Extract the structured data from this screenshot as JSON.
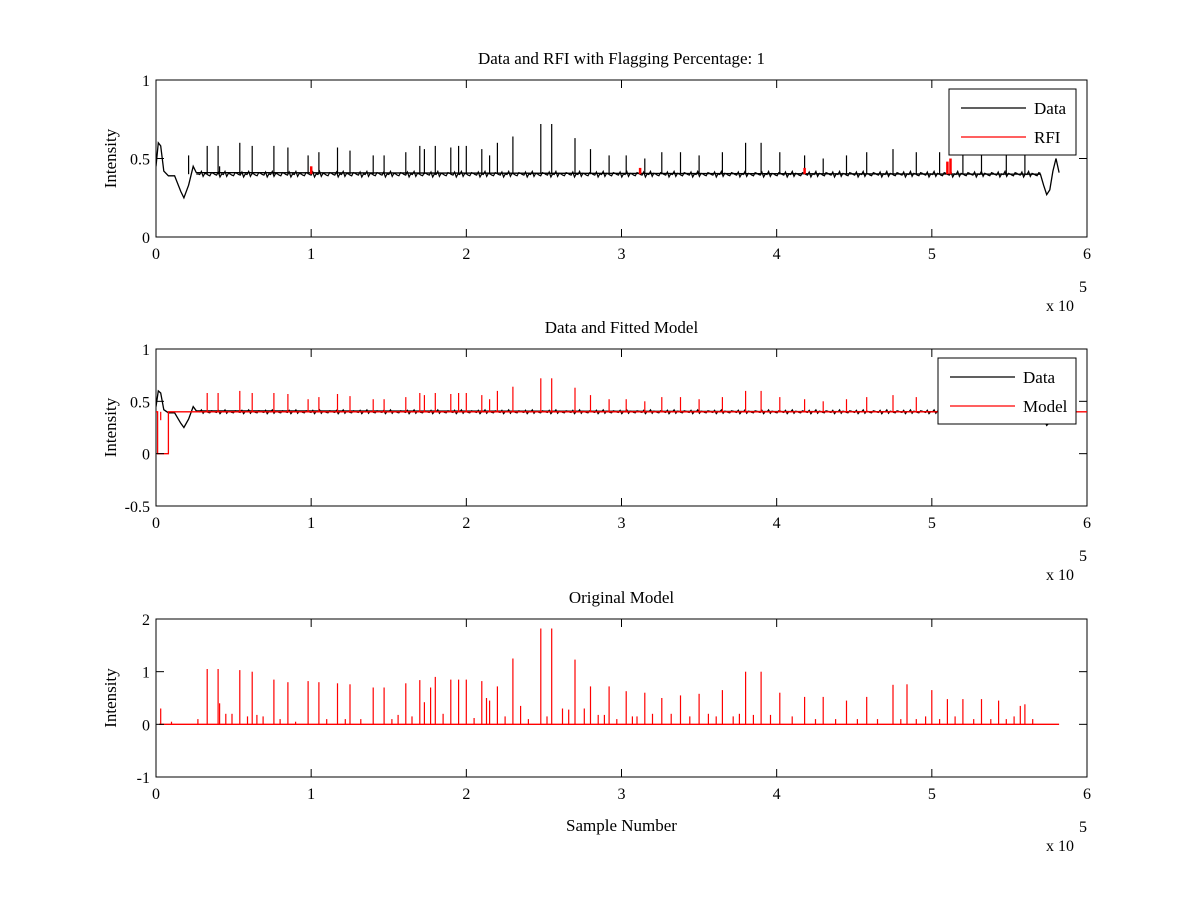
{
  "chart_data": [
    {
      "type": "line",
      "title": "Data and RFI with Flagging Percentage: 1",
      "xlabel": "",
      "ylabel": "Intensity",
      "xlim": [
        0,
        600000
      ],
      "ylim": [
        0,
        1
      ],
      "x_ticks": [
        0,
        1,
        2,
        3,
        4,
        5,
        6
      ],
      "y_ticks": [
        "0",
        "0.5",
        "1"
      ],
      "x_exponent_label": "x 10",
      "x_exponent": "5",
      "legend_position": "top-right",
      "series": [
        {
          "name": "Data",
          "color": "#000000",
          "baseline": 0.4,
          "x": [
            0,
            1500,
            3000,
            5000,
            8000,
            12000,
            16000,
            18000,
            21000,
            24000,
            26000,
            570000,
            572000,
            574000,
            576000,
            578000,
            580000,
            582000
          ],
          "y": [
            0.45,
            0.6,
            0.58,
            0.42,
            0.39,
            0.39,
            0.29,
            0.25,
            0.33,
            0.45,
            0.41,
            0.4,
            0.33,
            0.27,
            0.3,
            0.42,
            0.5,
            0.41
          ],
          "spikes_x": [
            21000,
            33000,
            40000,
            41000,
            54000,
            62000,
            76000,
            85000,
            98000,
            105000,
            117000,
            125000,
            140000,
            147000,
            161000,
            170000,
            173000,
            180000,
            190000,
            195000,
            200000,
            210000,
            215000,
            220000,
            230000,
            248000,
            255000,
            270000,
            280000,
            292000,
            303000,
            315000,
            326000,
            338000,
            350000,
            365000,
            380000,
            390000,
            402000,
            418000,
            430000,
            445000,
            458000,
            475000,
            490000,
            505000,
            520000,
            532000,
            548000,
            560000
          ],
          "spikes_y": [
            0.52,
            0.58,
            0.58,
            0.45,
            0.6,
            0.58,
            0.58,
            0.57,
            0.52,
            0.54,
            0.57,
            0.55,
            0.52,
            0.52,
            0.54,
            0.58,
            0.56,
            0.58,
            0.57,
            0.58,
            0.58,
            0.56,
            0.52,
            0.6,
            0.64,
            0.72,
            0.72,
            0.63,
            0.56,
            0.52,
            0.52,
            0.5,
            0.54,
            0.54,
            0.52,
            0.54,
            0.6,
            0.6,
            0.54,
            0.52,
            0.5,
            0.52,
            0.54,
            0.56,
            0.54,
            0.54,
            0.56,
            0.52,
            0.52,
            0.52
          ]
        },
        {
          "name": "RFI",
          "color": "#ff0000",
          "baseline": 0.4,
          "spikes_x": [
            100000,
            312000,
            418000,
            510000,
            512000
          ],
          "spikes_y": [
            0.45,
            0.44,
            0.44,
            0.48,
            0.5
          ]
        }
      ]
    },
    {
      "type": "line",
      "title": "Data and Fitted Model",
      "xlabel": "",
      "ylabel": "Intensity",
      "xlim": [
        0,
        600000
      ],
      "ylim": [
        -0.5,
        1
      ],
      "x_ticks": [
        0,
        1,
        2,
        3,
        4,
        5,
        6
      ],
      "y_ticks": [
        "-0.5",
        "0",
        "0.5",
        "1"
      ],
      "x_exponent_label": "x 10",
      "x_exponent": "5",
      "legend_position": "top-right",
      "series": [
        {
          "name": "Data",
          "color": "#000000",
          "baseline": 0.4,
          "x": [
            0,
            1500,
            3000,
            5000,
            8000,
            12000,
            16000,
            18000,
            21000,
            24000,
            26000,
            570000,
            572000,
            574000,
            576000,
            578000
          ],
          "y": [
            0.45,
            0.6,
            0.58,
            0.42,
            0.39,
            0.39,
            0.29,
            0.25,
            0.33,
            0.45,
            0.41,
            0.4,
            0.33,
            0.27,
            0.3,
            0.4
          ]
        },
        {
          "name": "Model",
          "color": "#ff0000",
          "baseline": 0.4,
          "x": [
            0,
            1000,
            1000,
            8000,
            8000,
            600000
          ],
          "y": [
            0.4,
            0.4,
            0,
            0,
            0.4,
            0.4
          ],
          "spikes_x": [
            3000,
            33000,
            40000,
            54000,
            62000,
            76000,
            85000,
            98000,
            105000,
            117000,
            125000,
            140000,
            147000,
            161000,
            170000,
            173000,
            180000,
            190000,
            195000,
            200000,
            210000,
            215000,
            220000,
            230000,
            248000,
            255000,
            270000,
            280000,
            292000,
            303000,
            315000,
            326000,
            338000,
            350000,
            365000,
            380000,
            390000,
            402000,
            418000,
            430000,
            445000,
            458000,
            475000,
            490000,
            505000,
            520000,
            532000,
            548000,
            560000
          ],
          "spikes_y": [
            0.32,
            0.58,
            0.58,
            0.6,
            0.58,
            0.58,
            0.57,
            0.52,
            0.54,
            0.57,
            0.55,
            0.52,
            0.52,
            0.54,
            0.58,
            0.56,
            0.58,
            0.57,
            0.58,
            0.58,
            0.56,
            0.52,
            0.6,
            0.64,
            0.72,
            0.72,
            0.63,
            0.56,
            0.52,
            0.52,
            0.5,
            0.54,
            0.54,
            0.52,
            0.54,
            0.6,
            0.6,
            0.54,
            0.52,
            0.5,
            0.52,
            0.54,
            0.56,
            0.54,
            0.54,
            0.56,
            0.52,
            0.52,
            0.52
          ]
        }
      ]
    },
    {
      "type": "line",
      "title": "Original Model",
      "xlabel": "Sample Number",
      "ylabel": "Intensity",
      "xlim": [
        0,
        600000
      ],
      "ylim": [
        -1,
        2
      ],
      "x_ticks": [
        0,
        1,
        2,
        3,
        4,
        5,
        6
      ],
      "y_ticks": [
        "-1",
        "0",
        "1",
        "2"
      ],
      "x_exponent_label": "x 10",
      "x_exponent": "5",
      "series": [
        {
          "color": "#ff0000",
          "baseline": 0,
          "x": [
            2000,
            582000
          ],
          "y": [
            0,
            0
          ],
          "spikes_x": [
            3000,
            10000,
            27000,
            33000,
            40000,
            41000,
            45000,
            49000,
            54000,
            59000,
            62000,
            65000,
            69000,
            76000,
            80000,
            85000,
            90000,
            98000,
            105000,
            110000,
            117000,
            122000,
            125000,
            132000,
            140000,
            147000,
            152000,
            156000,
            161000,
            165000,
            170000,
            173000,
            177000,
            180000,
            185000,
            190000,
            195000,
            200000,
            205000,
            210000,
            213000,
            215000,
            220000,
            225000,
            230000,
            235000,
            240000,
            248000,
            252000,
            255000,
            262000,
            266000,
            270000,
            276000,
            280000,
            285000,
            289000,
            292000,
            297000,
            303000,
            307000,
            310000,
            315000,
            320000,
            326000,
            332000,
            338000,
            344000,
            350000,
            356000,
            361000,
            365000,
            372000,
            376000,
            380000,
            385000,
            390000,
            396000,
            402000,
            410000,
            418000,
            425000,
            430000,
            438000,
            445000,
            452000,
            458000,
            465000,
            475000,
            480000,
            484000,
            490000,
            496000,
            500000,
            505000,
            510000,
            515000,
            520000,
            527000,
            532000,
            538000,
            543000,
            548000,
            553000,
            557000,
            560000,
            565000
          ],
          "spikes_y": [
            0.3,
            0.05,
            0.1,
            1.05,
            1.05,
            0.4,
            0.2,
            0.2,
            1.03,
            0.15,
            1.0,
            0.18,
            0.15,
            0.85,
            0.1,
            0.8,
            0.05,
            0.82,
            0.8,
            0.1,
            0.78,
            0.1,
            0.76,
            0.1,
            0.7,
            0.7,
            0.1,
            0.18,
            0.78,
            0.15,
            0.84,
            0.42,
            0.7,
            0.9,
            0.2,
            0.85,
            0.85,
            0.85,
            0.12,
            0.82,
            0.5,
            0.45,
            0.72,
            0.15,
            1.25,
            0.35,
            0.1,
            1.82,
            0.15,
            1.82,
            0.3,
            0.28,
            1.23,
            0.3,
            0.72,
            0.18,
            0.18,
            0.72,
            0.1,
            0.63,
            0.15,
            0.15,
            0.6,
            0.2,
            0.5,
            0.2,
            0.55,
            0.15,
            0.58,
            0.2,
            0.15,
            0.65,
            0.15,
            0.2,
            1.0,
            0.18,
            1.0,
            0.18,
            0.6,
            0.15,
            0.52,
            0.1,
            0.52,
            0.1,
            0.45,
            0.1,
            0.52,
            0.1,
            0.75,
            0.1,
            0.76,
            0.1,
            0.15,
            0.65,
            0.1,
            0.48,
            0.15,
            0.48,
            0.1,
            0.48,
            0.1,
            0.45,
            0.1,
            0.15,
            0.35,
            0.38,
            0.1
          ]
        }
      ]
    }
  ]
}
